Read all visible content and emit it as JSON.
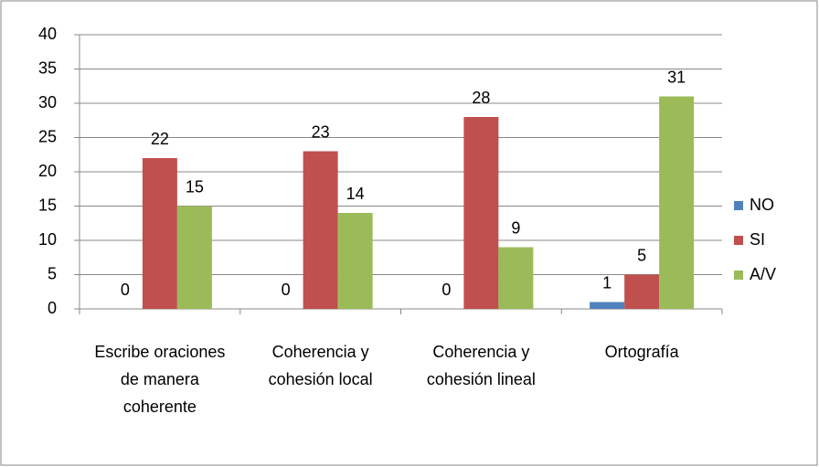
{
  "chart_data": {
    "type": "bar",
    "categories": [
      "Escribe oraciones de manera coherente",
      "Coherencia y cohesión local",
      "Coherencia y cohesión lineal",
      "Ortografía"
    ],
    "series": [
      {
        "name": "NO",
        "color": "#4f81bd",
        "values": [
          0,
          0,
          0,
          1
        ]
      },
      {
        "name": "SI",
        "color": "#c0504d",
        "values": [
          22,
          23,
          28,
          5
        ]
      },
      {
        "name": "A/V",
        "color": "#9bbb59",
        "values": [
          15,
          14,
          9,
          31
        ]
      }
    ],
    "ylim": [
      0,
      40
    ],
    "yticks": [
      0,
      5,
      10,
      15,
      20,
      25,
      30,
      35,
      40
    ],
    "grid": true,
    "legend": "right"
  }
}
